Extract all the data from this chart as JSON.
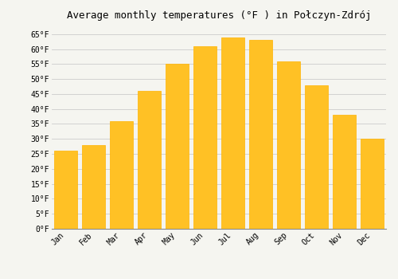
{
  "title": "Average monthly temperatures (°F ) in Połczyn-Zdrój",
  "months": [
    "Jan",
    "Feb",
    "Mar",
    "Apr",
    "May",
    "Jun",
    "Jul",
    "Aug",
    "Sep",
    "Oct",
    "Nov",
    "Dec"
  ],
  "values": [
    26,
    28,
    36,
    46,
    55,
    61,
    64,
    63,
    56,
    48,
    38,
    30
  ],
  "bar_color": "#FFC125",
  "bar_edge_color": "#FFB300",
  "ylim": [
    0,
    68
  ],
  "yticks": [
    0,
    5,
    10,
    15,
    20,
    25,
    30,
    35,
    40,
    45,
    50,
    55,
    60,
    65
  ],
  "background_color": "#F5F5F0",
  "grid_color": "#CCCCCC",
  "title_fontsize": 9,
  "tick_fontsize": 7,
  "font_family": "monospace"
}
